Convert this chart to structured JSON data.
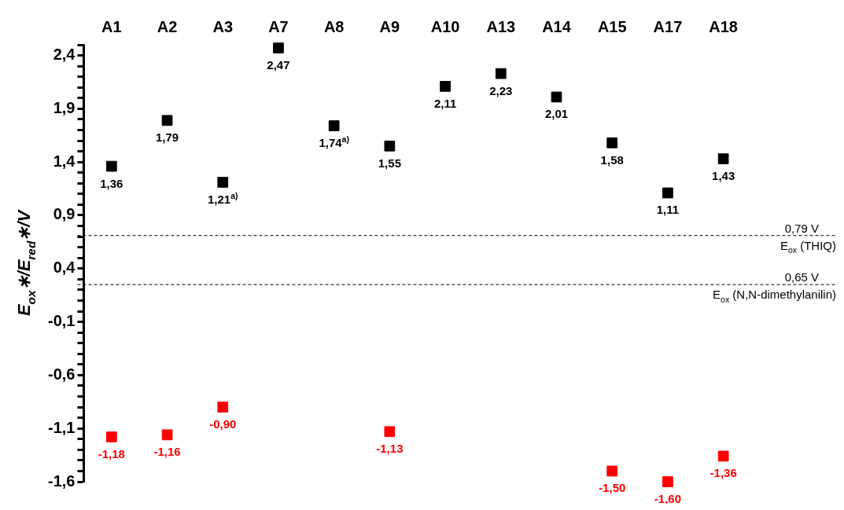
{
  "chart_data": {
    "type": "scatter",
    "ylabel": "E$_{ox}$∗/E$_{red}$∗/V",
    "categories": [
      "A1",
      "A2",
      "A3",
      "A7",
      "A8",
      "A9",
      "A10",
      "A13",
      "A14",
      "A15",
      "A17",
      "A18"
    ],
    "series": [
      {
        "color": "#000000",
        "values": [
          1.36,
          1.79,
          1.21,
          2.47,
          1.74,
          1.55,
          2.11,
          2.23,
          2.01,
          1.58,
          1.11,
          1.43
        ],
        "value_labels": [
          "1,36",
          "1,79",
          "1,21$^{a)}$",
          "2,47",
          "1,74$^{a)}$",
          "1,55",
          "2,11",
          "2,23",
          "2,01",
          "1,58",
          "1,11",
          "1,43"
        ]
      },
      {
        "color": "#ff0000",
        "values": [
          -1.18,
          -1.16,
          -0.9,
          null,
          null,
          -1.13,
          null,
          null,
          null,
          -1.5,
          -1.6,
          -1.36
        ],
        "value_labels": [
          "-1,18",
          "-1,16",
          "-0,90",
          null,
          null,
          "-1,13",
          null,
          null,
          null,
          "-1,50",
          "-1,60",
          "-1,36"
        ]
      }
    ],
    "ylim": [
      -1.6,
      2.5
    ],
    "yticks": [
      {
        "value": -1.6,
        "label": "-1,6"
      },
      {
        "value": -1.5,
        "label": null
      },
      {
        "value": -1.4,
        "label": null
      },
      {
        "value": -1.3,
        "label": null
      },
      {
        "value": -1.2,
        "label": null
      },
      {
        "value": -1.1,
        "label": "-1,1"
      },
      {
        "value": -1.0,
        "label": null
      },
      {
        "value": -0.9,
        "label": null
      },
      {
        "value": -0.8,
        "label": null
      },
      {
        "value": -0.7,
        "label": null
      },
      {
        "value": -0.6,
        "label": "-0,6"
      },
      {
        "value": -0.5,
        "label": null
      },
      {
        "value": -0.4,
        "label": null
      },
      {
        "value": -0.3,
        "label": null
      },
      {
        "value": -0.2,
        "label": null
      },
      {
        "value": -0.1,
        "label": "-0,1"
      },
      {
        "value": 0.0,
        "label": null
      },
      {
        "value": 0.1,
        "label": null
      },
      {
        "value": 0.2,
        "label": null
      },
      {
        "value": 0.3,
        "label": null
      },
      {
        "value": 0.4,
        "label": "0,4"
      },
      {
        "value": 0.5,
        "label": null
      },
      {
        "value": 0.6,
        "label": null
      },
      {
        "value": 0.7,
        "label": null
      },
      {
        "value": 0.8,
        "label": null
      },
      {
        "value": 0.9,
        "label": "0,9"
      },
      {
        "value": 1.0,
        "label": null
      },
      {
        "value": 1.1,
        "label": null
      },
      {
        "value": 1.2,
        "label": null
      },
      {
        "value": 1.3,
        "label": null
      },
      {
        "value": 1.4,
        "label": "1,4"
      },
      {
        "value": 1.5,
        "label": null
      },
      {
        "value": 1.6,
        "label": null
      },
      {
        "value": 1.7,
        "label": null
      },
      {
        "value": 1.8,
        "label": null
      },
      {
        "value": 1.9,
        "label": "1,9"
      },
      {
        "value": 2.0,
        "label": null
      },
      {
        "value": 2.1,
        "label": null
      },
      {
        "value": 2.2,
        "label": null
      },
      {
        "value": 2.3,
        "label": null
      },
      {
        "value": 2.4,
        "label": "2,4"
      },
      {
        "value": 2.5,
        "label": null
      }
    ],
    "ref_lines": [
      {
        "axis": "y",
        "value": 0.71,
        "label": "0,79 V",
        "line_style": "dashed",
        "color": "#000000"
      },
      {
        "axis": "y",
        "value": 0.25,
        "label": "0,65 V",
        "line_style": "dashed",
        "color": "#000000"
      }
    ],
    "annotations": [
      {
        "text": "E$_{ox}$ (THIQ)",
        "y": 0.71
      },
      {
        "text": "E$_{ox}$ (N,N-dimethylanilin)",
        "y": 0.25
      }
    ],
    "marker": "square",
    "grid": false,
    "legend": false
  }
}
